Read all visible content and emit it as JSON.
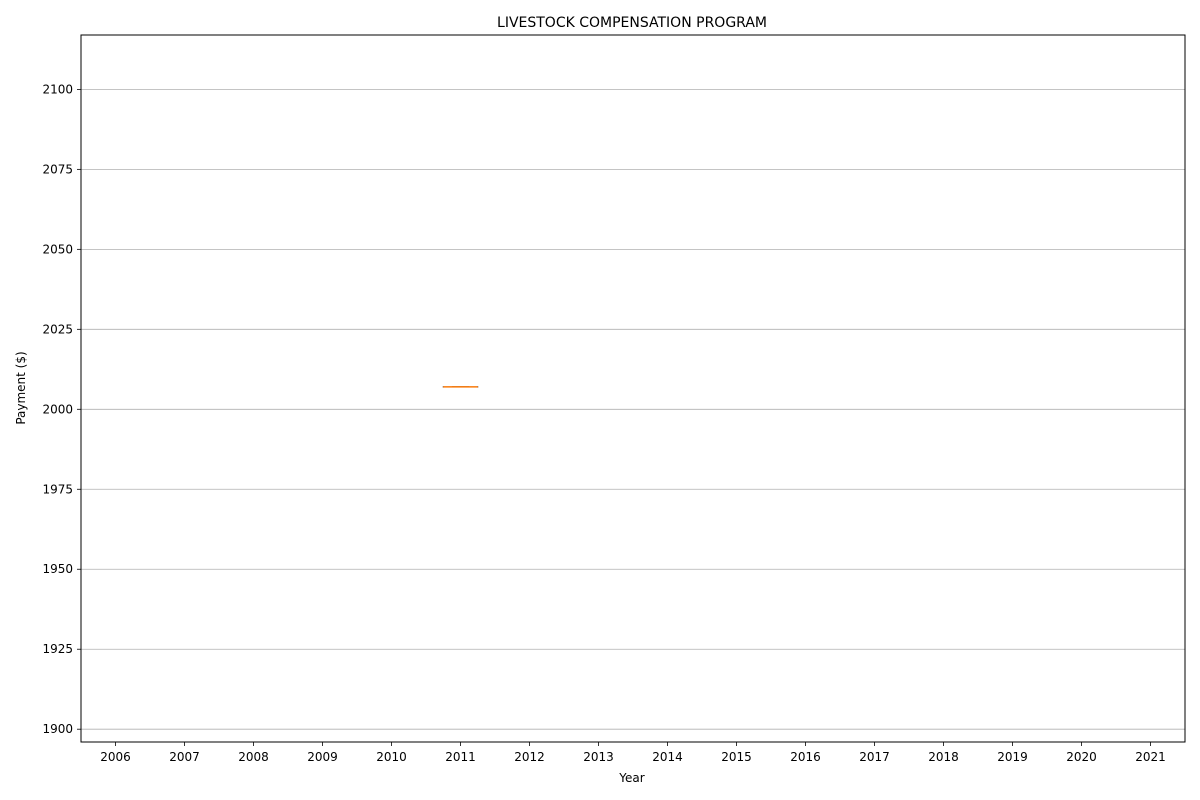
{
  "chart_data": {
    "type": "box",
    "title": "LIVESTOCK COMPENSATION PROGRAM",
    "xlabel": "Year",
    "ylabel": "Payment ($)",
    "categories": [
      "2006",
      "2007",
      "2008",
      "2009",
      "2010",
      "2011",
      "2012",
      "2013",
      "2014",
      "2015",
      "2016",
      "2017",
      "2018",
      "2019",
      "2020",
      "2021"
    ],
    "ylim": [
      1896,
      2117
    ],
    "yticks": [
      1900,
      1925,
      1950,
      1975,
      2000,
      2025,
      2050,
      2075,
      2100
    ],
    "grid": "y-major",
    "boxes": [
      {
        "category": "2011",
        "min": 2007,
        "q1": 2007,
        "median": 2007,
        "q3": 2007,
        "max": 2007
      }
    ],
    "colors": {
      "grid": "#b0b0b0",
      "axis": "#000000",
      "box": "#000000",
      "median": "#ff7f0e"
    }
  }
}
